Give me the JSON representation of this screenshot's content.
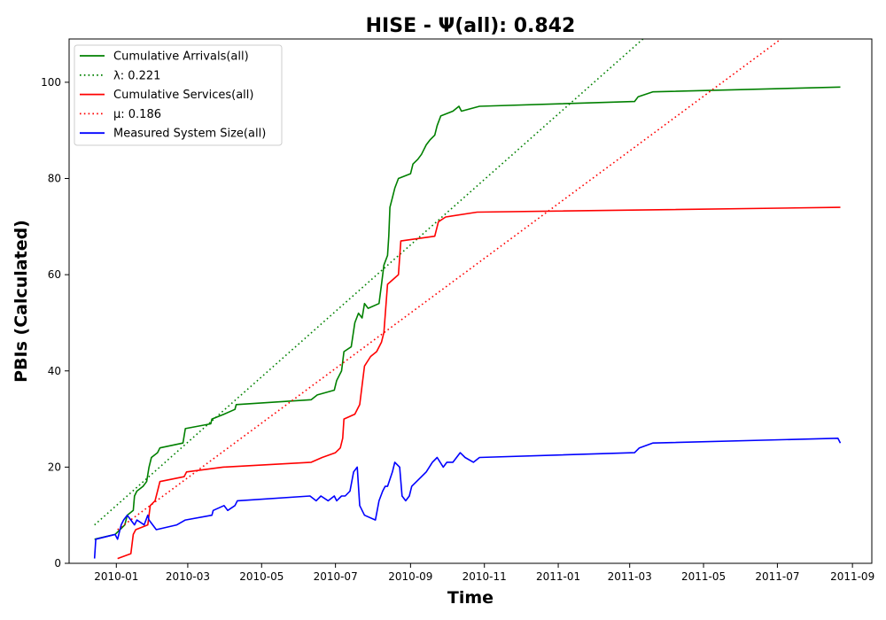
{
  "chart_data": {
    "type": "line",
    "title": "HISE -  Ψ(all): 0.842",
    "xlabel": "Time",
    "ylabel": "PBIs (Calculated)",
    "xlim": [
      "2009-11-23",
      "2011-09-17"
    ],
    "ylim": [
      0,
      109
    ],
    "x_ticks": [
      "2010-01-01",
      "2010-03-01",
      "2010-05-01",
      "2010-07-01",
      "2010-09-01",
      "2010-11-01",
      "2011-01-01",
      "2011-03-01",
      "2011-05-01",
      "2011-07-01",
      "2011-09-01"
    ],
    "x_tick_labels": [
      "2010-01",
      "2010-03",
      "2010-05",
      "2010-07",
      "2010-09",
      "2010-11",
      "2011-01",
      "2011-03",
      "2011-05",
      "2011-07",
      "2011-09"
    ],
    "y_ticks": [
      0,
      20,
      40,
      60,
      80,
      100
    ],
    "y_tick_labels": [
      "0",
      "20",
      "40",
      "60",
      "80",
      "100"
    ],
    "grid": false,
    "legend_position": "top-left",
    "series": [
      {
        "name": "Cumulative Arrivals(all)",
        "color": "#008000",
        "style": "solid",
        "points": [
          [
            "2009-12-14",
            5
          ],
          [
            "2009-12-31",
            6
          ],
          [
            "2010-01-04",
            7
          ],
          [
            "2010-01-08",
            8
          ],
          [
            "2010-01-10",
            10
          ],
          [
            "2010-01-15",
            11
          ],
          [
            "2010-01-16",
            14
          ],
          [
            "2010-01-18",
            15
          ],
          [
            "2010-01-23",
            16
          ],
          [
            "2010-01-26",
            17
          ],
          [
            "2010-01-28",
            20
          ],
          [
            "2010-01-30",
            22
          ],
          [
            "2010-02-04",
            23
          ],
          [
            "2010-02-06",
            24
          ],
          [
            "2010-02-25",
            25
          ],
          [
            "2010-02-27",
            28
          ],
          [
            "2010-03-20",
            29
          ],
          [
            "2010-03-21",
            30
          ],
          [
            "2010-03-31",
            31
          ],
          [
            "2010-04-09",
            32
          ],
          [
            "2010-04-10",
            33
          ],
          [
            "2010-06-11",
            34
          ],
          [
            "2010-06-16",
            35
          ],
          [
            "2010-06-30",
            36
          ],
          [
            "2010-07-02",
            38
          ],
          [
            "2010-07-06",
            40
          ],
          [
            "2010-07-08",
            44
          ],
          [
            "2010-07-14",
            45
          ],
          [
            "2010-07-17",
            50
          ],
          [
            "2010-07-20",
            52
          ],
          [
            "2010-07-23",
            51
          ],
          [
            "2010-07-25",
            54
          ],
          [
            "2010-07-28",
            53
          ],
          [
            "2010-08-06",
            54
          ],
          [
            "2010-08-08",
            58
          ],
          [
            "2010-08-10",
            62
          ],
          [
            "2010-08-13",
            64
          ],
          [
            "2010-08-14",
            68
          ],
          [
            "2010-08-15",
            74
          ],
          [
            "2010-08-17",
            76
          ],
          [
            "2010-08-19",
            78
          ],
          [
            "2010-08-22",
            80
          ],
          [
            "2010-09-01",
            81
          ],
          [
            "2010-09-03",
            83
          ],
          [
            "2010-09-07",
            84
          ],
          [
            "2010-09-10",
            85
          ],
          [
            "2010-09-14",
            87
          ],
          [
            "2010-09-17",
            88
          ],
          [
            "2010-09-21",
            89
          ],
          [
            "2010-09-23",
            91
          ],
          [
            "2010-09-26",
            93
          ],
          [
            "2010-10-06",
            94
          ],
          [
            "2010-10-11",
            95
          ],
          [
            "2010-10-13",
            94
          ],
          [
            "2010-10-28",
            95
          ],
          [
            "2011-03-05",
            96
          ],
          [
            "2011-03-08",
            97
          ],
          [
            "2011-03-20",
            98
          ],
          [
            "2011-08-22",
            99
          ]
        ]
      },
      {
        "name": "λ: 0.221",
        "color": "#008000",
        "style": "dotted",
        "points": [
          [
            "2009-12-14",
            8
          ],
          [
            "2011-03-12",
            109
          ]
        ]
      },
      {
        "name": "Cumulative Services(all)",
        "color": "#ff0000",
        "style": "solid",
        "points": [
          [
            "2010-01-02",
            1
          ],
          [
            "2010-01-13",
            2
          ],
          [
            "2010-01-15",
            6
          ],
          [
            "2010-01-17",
            7
          ],
          [
            "2010-01-27",
            8
          ],
          [
            "2010-01-29",
            12
          ],
          [
            "2010-02-02",
            13
          ],
          [
            "2010-02-04",
            15
          ],
          [
            "2010-02-06",
            17
          ],
          [
            "2010-02-26",
            18
          ],
          [
            "2010-02-28",
            19
          ],
          [
            "2010-03-30",
            20
          ],
          [
            "2010-06-11",
            21
          ],
          [
            "2010-06-20",
            22
          ],
          [
            "2010-07-01",
            23
          ],
          [
            "2010-07-05",
            24
          ],
          [
            "2010-07-07",
            26
          ],
          [
            "2010-07-08",
            30
          ],
          [
            "2010-07-17",
            31
          ],
          [
            "2010-07-21",
            33
          ],
          [
            "2010-07-23",
            37
          ],
          [
            "2010-07-25",
            41
          ],
          [
            "2010-07-30",
            43
          ],
          [
            "2010-08-04",
            44
          ],
          [
            "2010-08-08",
            46
          ],
          [
            "2010-08-10",
            48
          ],
          [
            "2010-08-13",
            58
          ],
          [
            "2010-08-22",
            60
          ],
          [
            "2010-08-24",
            67
          ],
          [
            "2010-09-21",
            68
          ],
          [
            "2010-09-24",
            71
          ],
          [
            "2010-09-30",
            72
          ],
          [
            "2010-10-26",
            73
          ],
          [
            "2011-08-22",
            74
          ]
        ]
      },
      {
        "name": "μ: 0.186",
        "color": "#ff0000",
        "style": "dotted",
        "points": [
          [
            "2010-01-02",
            7
          ],
          [
            "2011-07-04",
            109
          ]
        ]
      },
      {
        "name": "Measured System Size(all)",
        "color": "#0000ff",
        "style": "solid",
        "points": [
          [
            "2009-12-14",
            1
          ],
          [
            "2009-12-15",
            5
          ],
          [
            "2009-12-31",
            6
          ],
          [
            "2010-01-02",
            5
          ],
          [
            "2010-01-05",
            8
          ],
          [
            "2010-01-07",
            9
          ],
          [
            "2010-01-10",
            10
          ],
          [
            "2010-01-13",
            9
          ],
          [
            "2010-01-16",
            8
          ],
          [
            "2010-01-18",
            9
          ],
          [
            "2010-01-24",
            8
          ],
          [
            "2010-01-27",
            10
          ],
          [
            "2010-01-28",
            9
          ],
          [
            "2010-02-03",
            7
          ],
          [
            "2010-02-20",
            8
          ],
          [
            "2010-02-27",
            9
          ],
          [
            "2010-03-21",
            10
          ],
          [
            "2010-03-22",
            11
          ],
          [
            "2010-03-31",
            12
          ],
          [
            "2010-04-03",
            11
          ],
          [
            "2010-04-09",
            12
          ],
          [
            "2010-04-11",
            13
          ],
          [
            "2010-06-10",
            14
          ],
          [
            "2010-06-15",
            13
          ],
          [
            "2010-06-19",
            14
          ],
          [
            "2010-06-25",
            13
          ],
          [
            "2010-06-30",
            14
          ],
          [
            "2010-07-02",
            13
          ],
          [
            "2010-07-06",
            14
          ],
          [
            "2010-07-09",
            14
          ],
          [
            "2010-07-13",
            15
          ],
          [
            "2010-07-16",
            19
          ],
          [
            "2010-07-19",
            20
          ],
          [
            "2010-07-21",
            12
          ],
          [
            "2010-07-25",
            10
          ],
          [
            "2010-08-03",
            9
          ],
          [
            "2010-08-06",
            13
          ],
          [
            "2010-08-09",
            15
          ],
          [
            "2010-08-11",
            16
          ],
          [
            "2010-08-13",
            16
          ],
          [
            "2010-08-17",
            19
          ],
          [
            "2010-08-19",
            21
          ],
          [
            "2010-08-23",
            20
          ],
          [
            "2010-08-25",
            14
          ],
          [
            "2010-08-28",
            13
          ],
          [
            "2010-08-31",
            14
          ],
          [
            "2010-09-02",
            16
          ],
          [
            "2010-09-10",
            18
          ],
          [
            "2010-09-14",
            19
          ],
          [
            "2010-09-19",
            21
          ],
          [
            "2010-09-23",
            22
          ],
          [
            "2010-09-28",
            20
          ],
          [
            "2010-10-01",
            21
          ],
          [
            "2010-10-06",
            21
          ],
          [
            "2010-10-12",
            23
          ],
          [
            "2010-10-16",
            22
          ],
          [
            "2010-10-23",
            21
          ],
          [
            "2010-10-28",
            22
          ],
          [
            "2011-03-05",
            23
          ],
          [
            "2011-03-09",
            24
          ],
          [
            "2011-03-20",
            25
          ],
          [
            "2011-08-20",
            26
          ],
          [
            "2011-08-22",
            25
          ]
        ]
      }
    ]
  }
}
